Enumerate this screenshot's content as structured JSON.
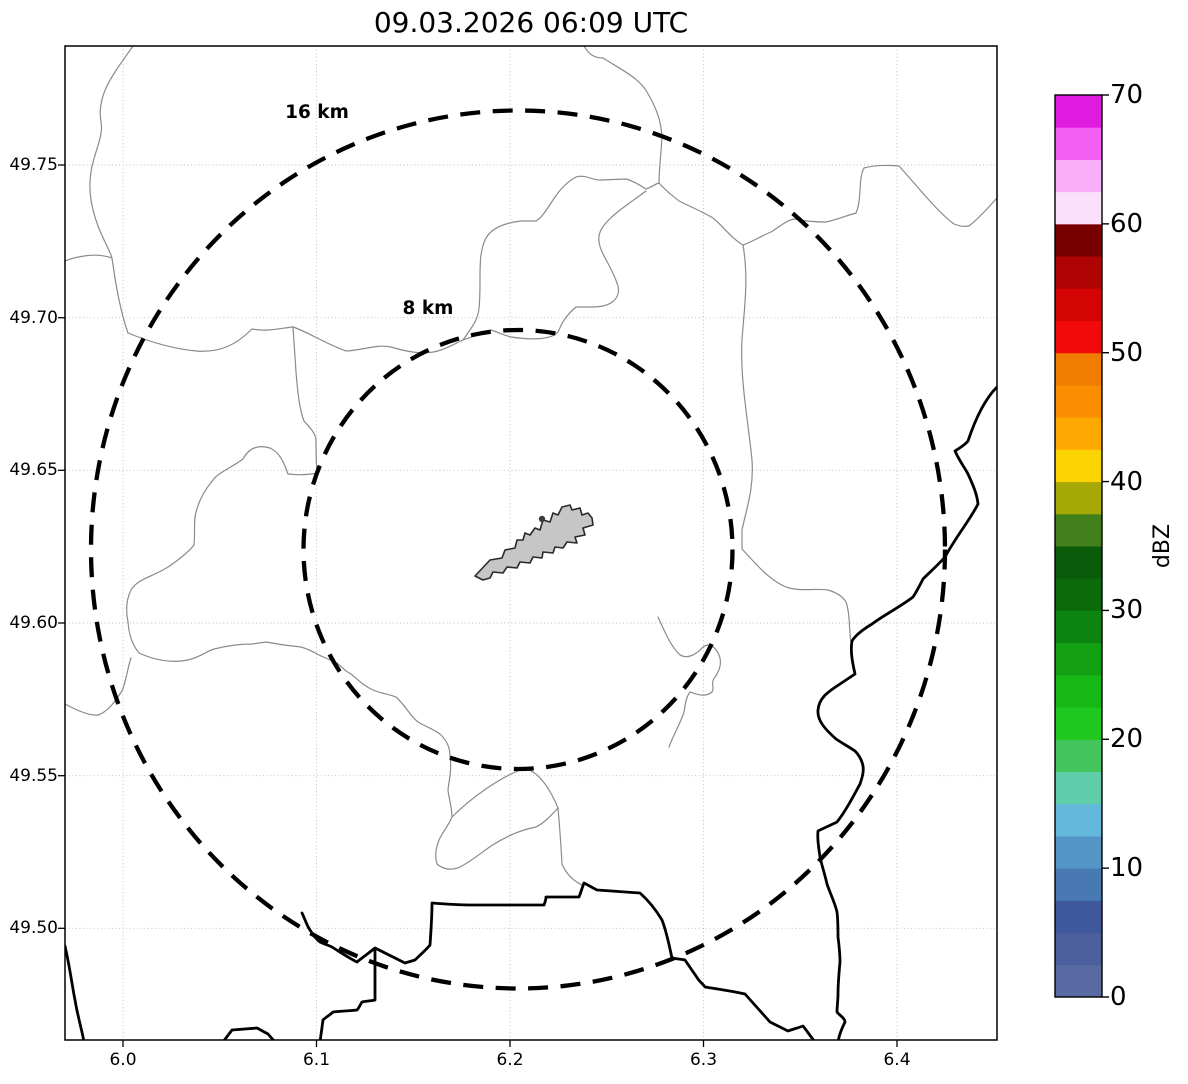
{
  "title": "09.03.2026 06:09 UTC",
  "map": {
    "x_axis_tick_labels": [
      "6.0",
      "6.1",
      "6.2",
      "6.3",
      "6.4"
    ],
    "y_axis_tick_labels": [
      "49.75",
      "49.70",
      "49.65",
      "49.60",
      "49.55",
      "49.50"
    ],
    "range_rings": [
      {
        "label": "16 km",
        "radius_km": 16
      },
      {
        "label": "8 km",
        "radius_km": 8
      }
    ],
    "colors": {
      "airport_fill": "#c6c6c6",
      "airport_outline": "#2a2a2a",
      "country_border": "#000000",
      "river_line": "#8a8a8a",
      "grid_line": "#bcbcbc",
      "ring_line": "#000000"
    }
  },
  "colorbar": {
    "label": "dBZ",
    "tick_labels": [
      "0",
      "10",
      "20",
      "30",
      "40",
      "50",
      "60",
      "70"
    ],
    "min": 0,
    "max": 70,
    "segment_step": 2.5,
    "segment_colors_bottom_to_top": [
      "#5969A1",
      "#4B5F9C",
      "#3F589D",
      "#4879B3",
      "#5396C5",
      "#64B8DB",
      "#5FCDA9",
      "#44C45C",
      "#1EC81E",
      "#16B816",
      "#12A012",
      "#0E8410",
      "#0B6B0B",
      "#0A5C0A",
      "#42801C",
      "#A6A805",
      "#FCD303",
      "#FEA901",
      "#FA8D00",
      "#F07C00",
      "#F20A0A",
      "#D40404",
      "#B00404",
      "#780000",
      "#FBE0FB",
      "#F9AEF9",
      "#F25FF2",
      "#E01BE0"
    ]
  }
}
